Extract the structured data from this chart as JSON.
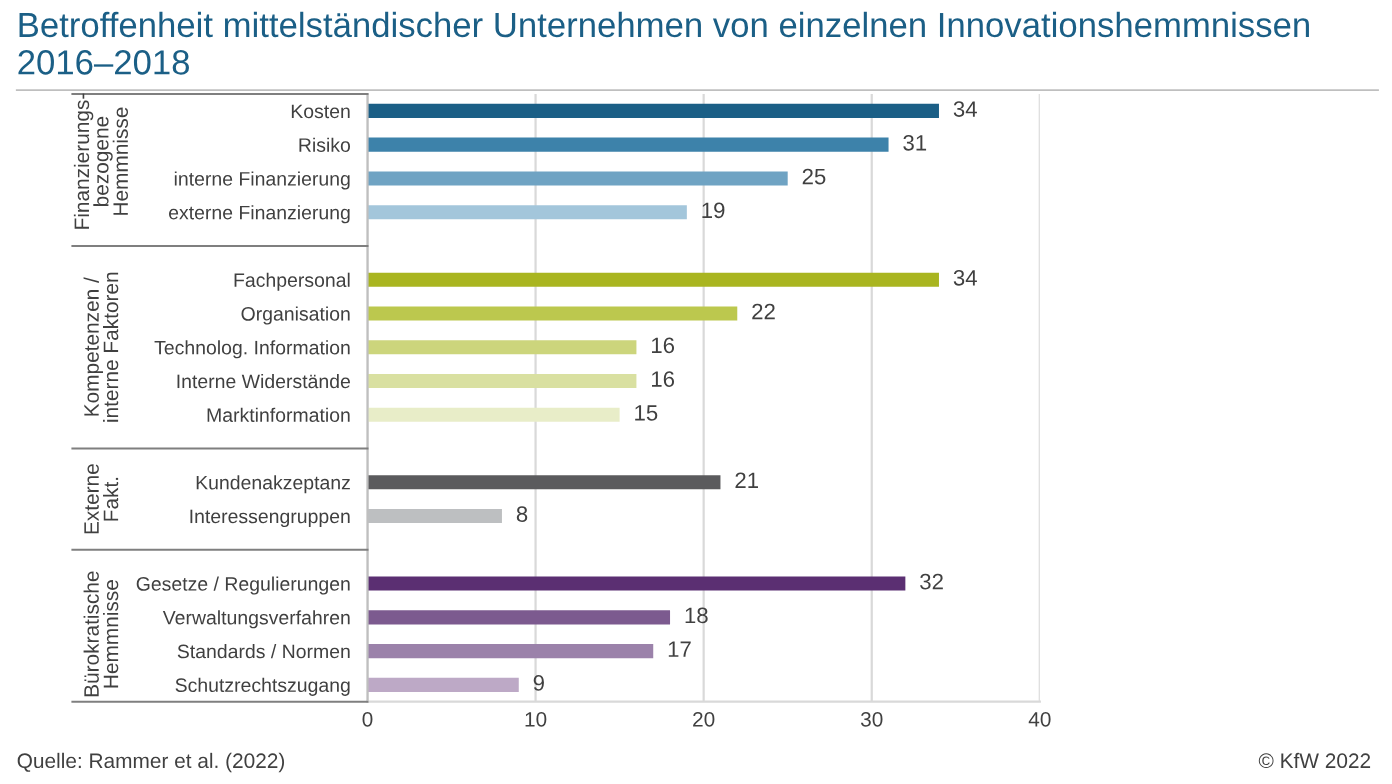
{
  "chart_data": {
    "type": "bar",
    "orientation": "horizontal",
    "title": "Betroffenheit mittelständischer Unternehmen von einzelnen Innovationshemmnissen\n2016–2018",
    "categories": [
      "Kosten",
      "Risiko",
      "interne Finanzierung",
      "externe Finanzierung",
      null,
      "Fachpersonal",
      "Organisation",
      "Technolog. Information",
      "Interne Widerstände",
      "Marktinformation",
      null,
      "Kundenakzeptanz",
      "Interessengruppen",
      null,
      "Gesetze / Regulierungen",
      "Verwaltungsverfahren",
      "Standards / Normen",
      "Schutzrechtszugang"
    ],
    "values": [
      34,
      31,
      25,
      19,
      null,
      34,
      22,
      16,
      16,
      15,
      null,
      21,
      8,
      null,
      32,
      18,
      17,
      9
    ],
    "colors": [
      "#1b5f86",
      "#3d82aa",
      "#6fa3c3",
      "#a3c6db",
      null,
      "#a9b520",
      "#bcc84e",
      "#ccd57c",
      "#d9e0a1",
      "#e8edc8",
      null,
      "#5b5b5d",
      "#bdbfc1",
      null,
      "#5b2f72",
      "#7c5a8f",
      "#9b82aa",
      "#bda9c6"
    ],
    "xlim": [
      0,
      40
    ],
    "xticks": [
      0,
      10,
      20,
      30,
      40
    ],
    "grid": "x",
    "data_labels": true,
    "annotations": [
      "Finanzierungs-\nbezogene\nHemmnisse",
      "Kompetenzen /\ninterne Faktoren",
      "Externe\nFakt.",
      "Bürokratische\nHemmnisse",
      "Quelle: Rammer et al. (2022)",
      "© KfW 2022"
    ]
  }
}
